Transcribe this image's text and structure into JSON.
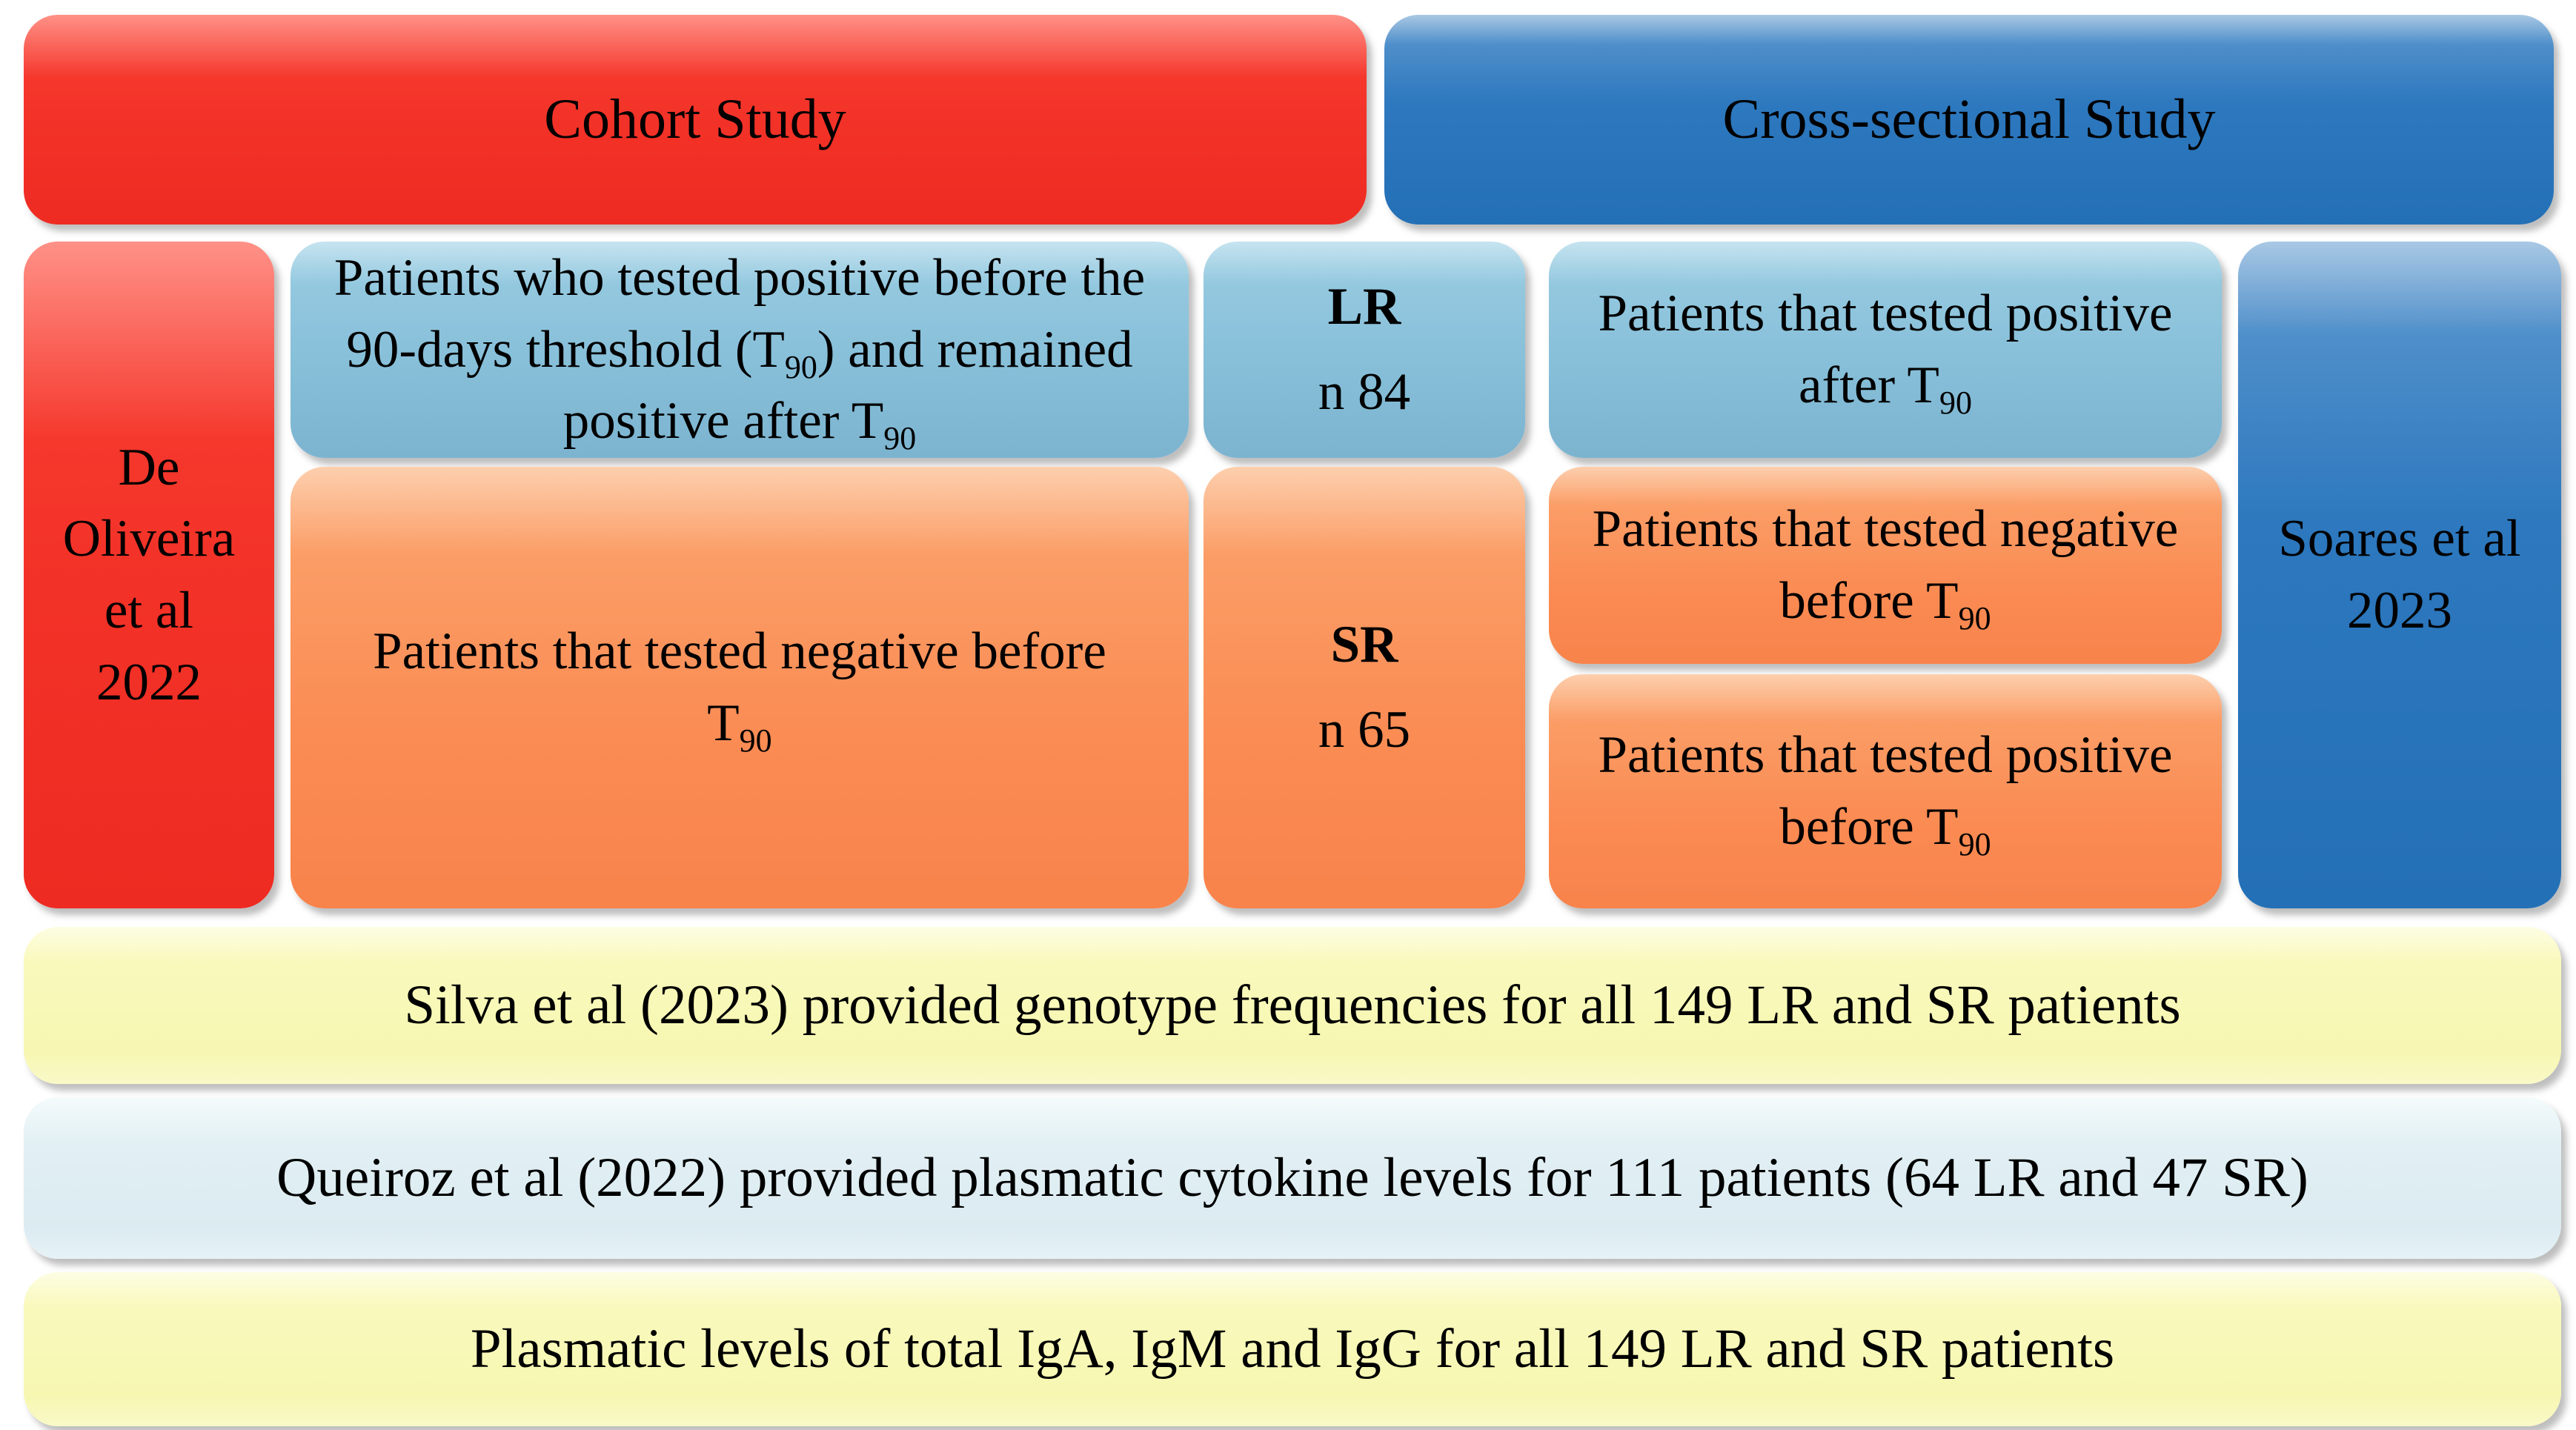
{
  "palette": {
    "background": "#ffffff",
    "text": "#000000",
    "red-main": "#f23127",
    "red-light": "#ff9187",
    "blue-main": "#2a75bb",
    "blue-light": "#a9c8e4",
    "skyblue-main": "#86bed8",
    "skyblue-light": "#c6e4f0",
    "orange-main": "#fa8c54",
    "orange-light": "#fdcfae",
    "yellow-main": "#f8f8b7",
    "yellow-light": "#fdfde4",
    "paleblue-main": "#dcecf2",
    "paleblue-light": "#f4fbfc"
  },
  "headers": {
    "cohort": "Cohort Study",
    "cross_sectional": "Cross-sectional Study"
  },
  "studies": {
    "left": {
      "lines": [
        "De",
        "Oliveira",
        "et al",
        "2022"
      ]
    },
    "right": {
      "lines": [
        "Soares et al",
        "2023"
      ]
    }
  },
  "cohort_column": {
    "top": {
      "lines": [
        "Patients who tested positive before the",
        "90-days threshold (T{90}) and remained",
        "positive after T{90}"
      ]
    },
    "bottom": {
      "lines": [
        "Patients that tested negative before",
        "T{90}"
      ]
    }
  },
  "groups": {
    "lr": {
      "label": "LR",
      "count": "n 84"
    },
    "sr": {
      "label": "SR",
      "count": "n 65"
    }
  },
  "cross_column": {
    "top": {
      "lines": [
        "Patients that tested positive",
        "after T{90}"
      ]
    },
    "mid": {
      "lines": [
        "Patients that tested negative",
        "before T{90}"
      ]
    },
    "bottom": {
      "lines": [
        "Patients that tested positive",
        "before T{90}"
      ]
    }
  },
  "bands": [
    {
      "text": "Silva et al (2023) provided genotype frequencies for all 149 LR and SR patients"
    },
    {
      "text": "Queiroz et al (2022) provided plasmatic cytokine levels for 111 patients (64 LR and 47 SR)"
    },
    {
      "text": "Plasmatic levels of total IgA, IgM and IgG for all 149 LR and SR patients"
    }
  ]
}
